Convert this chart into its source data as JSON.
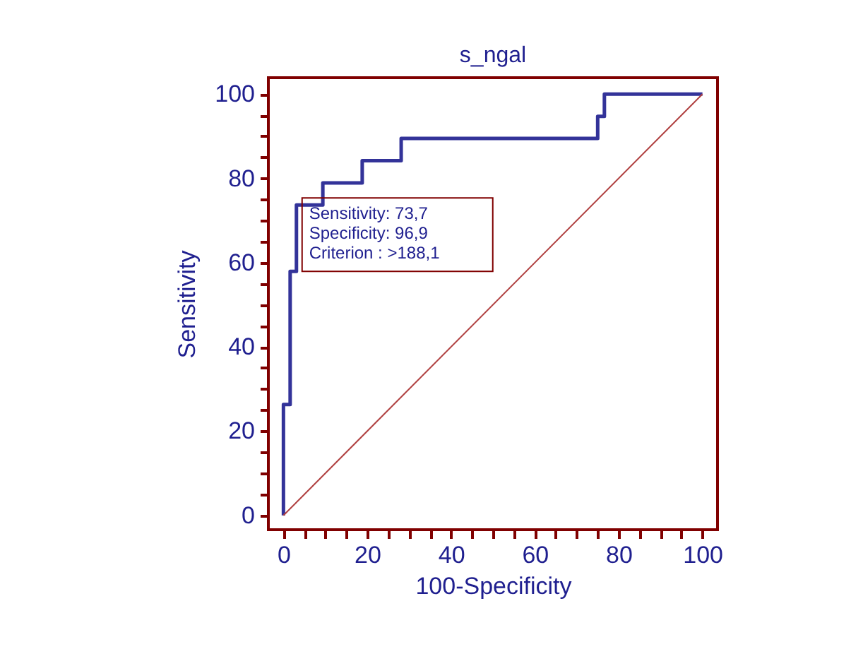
{
  "chart_data": {
    "type": "step",
    "title": "s_ngal",
    "xlabel": "100-Specificity",
    "ylabel": "Sensitivity",
    "xlim": [
      -3.6,
      103.6
    ],
    "ylim": [
      -3.4,
      103.9
    ],
    "xticks": [
      0,
      {
        "value": 5,
        "label": null
      },
      {
        "value": 10,
        "label": null
      },
      {
        "value": 15,
        "label": null
      },
      20,
      {
        "value": 25,
        "label": null
      },
      {
        "value": 30,
        "label": null
      },
      {
        "value": 35,
        "label": null
      },
      40,
      {
        "value": 45,
        "label": null
      },
      {
        "value": 50,
        "label": null
      },
      {
        "value": 55,
        "label": null
      },
      60,
      {
        "value": 65,
        "label": null
      },
      {
        "value": 70,
        "label": null
      },
      {
        "value": 75,
        "label": null
      },
      80,
      {
        "value": 85,
        "label": null
      },
      {
        "value": 90,
        "label": null
      },
      {
        "value": 95,
        "label": null
      },
      100
    ],
    "yticks": [
      0,
      {
        "value": 5,
        "label": null
      },
      {
        "value": 10,
        "label": null
      },
      {
        "value": 15,
        "label": null
      },
      20,
      {
        "value": 25,
        "label": null
      },
      {
        "value": 30,
        "label": null
      },
      {
        "value": 35,
        "label": null
      },
      40,
      {
        "value": 45,
        "label": null
      },
      {
        "value": 50,
        "label": null
      },
      {
        "value": 55,
        "label": null
      },
      60,
      {
        "value": 65,
        "label": null
      },
      {
        "value": 70,
        "label": null
      },
      {
        "value": 75,
        "label": null
      },
      80,
      {
        "value": 85,
        "label": null
      },
      {
        "value": 90,
        "label": null
      },
      {
        "value": 95,
        "label": null
      },
      100
    ],
    "grid": false,
    "marker": "none",
    "series": [
      {
        "color": "#333399",
        "line_style": "solid",
        "x": [
          0,
          0,
          1.6,
          3.1,
          9.4,
          18.8,
          28.1,
          75,
          76.6,
          100
        ],
        "values": [
          0,
          26.3,
          57.9,
          73.7,
          78.9,
          84.2,
          89.5,
          94.7,
          100,
          100
        ]
      },
      {
        "type": "line",
        "color": "#b04040",
        "line_style": "solid",
        "x": [
          0,
          100
        ],
        "values": [
          0,
          100
        ]
      }
    ],
    "annotations": [
      {
        "text": "Sensitivity: 73,7\nSpecificity: 96,9\nCriterion : >188,1",
        "x": 3.1,
        "y": 73.7
      }
    ]
  }
}
